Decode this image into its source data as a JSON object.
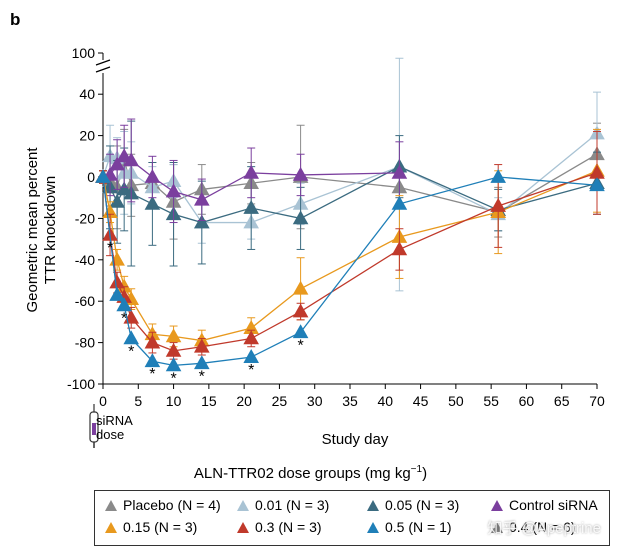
{
  "panel_label": "b",
  "annotation": {
    "dose_line1": "siRNA",
    "dose_line2": "dose"
  },
  "legend_title": "ALN-TTR02 dose groups (mg kg",
  "legend_title_sup": "−1",
  "legend_title_end": ")",
  "watermark": "知乎 @Apeptrine",
  "chart_data": {
    "type": "line",
    "ylabel": "Geometric mean percent TTR knockdown",
    "ylabel_line1": "Geometric mean percent",
    "ylabel_line2": "TTR knockdown",
    "xlabel": "Study day",
    "ylim": [
      -100,
      100
    ],
    "xlim": [
      0,
      70
    ],
    "y_ticks": [
      -100,
      -80,
      -60,
      -40,
      -20,
      0,
      20,
      40,
      100
    ],
    "x_ticks": [
      0,
      5,
      10,
      15,
      20,
      25,
      30,
      35,
      40,
      45,
      50,
      55,
      60,
      65,
      70
    ],
    "axis_break_y": 60,
    "significance_marker": "*",
    "series": [
      {
        "name": "Placebo (N = 4)",
        "color": "#8a8a8a",
        "points": [
          [
            0,
            0
          ],
          [
            1,
            -2
          ],
          [
            2,
            -5
          ],
          [
            3,
            8
          ],
          [
            4,
            -4
          ],
          [
            7,
            -3
          ],
          [
            10,
            -12
          ],
          [
            14,
            -6
          ],
          [
            21,
            -3
          ],
          [
            28,
            0
          ],
          [
            42,
            -5
          ],
          [
            56,
            -17
          ],
          [
            70,
            11
          ]
        ],
        "err": [
          3,
          12,
          20,
          15,
          15,
          10,
          18,
          12,
          10,
          25,
          10,
          12,
          15
        ]
      },
      {
        "name": "0.01 (N = 3)",
        "color": "#a9c3d4",
        "points": [
          [
            0,
            0
          ],
          [
            1,
            10
          ],
          [
            2,
            9
          ],
          [
            3,
            2
          ],
          [
            4,
            2
          ],
          [
            7,
            -5
          ],
          [
            10,
            -2
          ],
          [
            14,
            -22
          ],
          [
            21,
            -22
          ],
          [
            28,
            -13
          ],
          [
            42,
            5
          ],
          [
            56,
            -18
          ],
          [
            70,
            21
          ]
        ],
        "err": [
          3,
          15,
          10,
          20,
          15,
          10,
          8,
          10,
          8,
          10,
          60,
          8,
          20
        ]
      },
      {
        "name": "0.05 (N = 3)",
        "color": "#3b6b80",
        "points": [
          [
            0,
            0
          ],
          [
            1,
            -5
          ],
          [
            2,
            -12
          ],
          [
            3,
            -6
          ],
          [
            4,
            -8
          ],
          [
            7,
            -13
          ],
          [
            10,
            -18
          ],
          [
            14,
            -22
          ],
          [
            21,
            -15
          ],
          [
            28,
            -20
          ],
          [
            42,
            5
          ],
          [
            56,
            -16
          ],
          [
            70,
            -3
          ]
        ],
        "err": [
          3,
          20,
          20,
          20,
          35,
          20,
          25,
          20,
          20,
          15,
          15,
          10,
          15
        ]
      },
      {
        "name": "Control siRNA",
        "color": "#7b3f9e",
        "points": [
          [
            0,
            0
          ],
          [
            1,
            1
          ],
          [
            2,
            6
          ],
          [
            3,
            10
          ],
          [
            4,
            8
          ],
          [
            7,
            0
          ],
          [
            10,
            -7
          ],
          [
            14,
            -11
          ],
          [
            21,
            2
          ],
          [
            28,
            1
          ],
          [
            42,
            2
          ]
        ],
        "err": [
          3,
          10,
          12,
          15,
          20,
          10,
          15,
          10,
          12,
          10,
          15
        ]
      },
      {
        "name": "0.15 (N = 3)",
        "color": "#e8991e",
        "points": [
          [
            0,
            0
          ],
          [
            1,
            -17
          ],
          [
            2,
            -40
          ],
          [
            3,
            -53
          ],
          [
            4,
            -59
          ],
          [
            7,
            -76
          ],
          [
            10,
            -77
          ],
          [
            14,
            -79
          ],
          [
            21,
            -73
          ],
          [
            28,
            -54
          ],
          [
            42,
            -29
          ],
          [
            56,
            -17
          ],
          [
            70,
            3
          ]
        ],
        "err": [
          3,
          5,
          5,
          5,
          5,
          5,
          5,
          5,
          5,
          15,
          20,
          20,
          20
        ]
      },
      {
        "name": "0.3 (N = 3)",
        "color": "#c0392b",
        "points": [
          [
            0,
            0
          ],
          [
            1,
            -28
          ],
          [
            2,
            -51
          ],
          [
            3,
            -58
          ],
          [
            4,
            -68
          ],
          [
            7,
            -80
          ],
          [
            10,
            -84
          ],
          [
            14,
            -82
          ],
          [
            21,
            -78
          ],
          [
            28,
            -65
          ],
          [
            42,
            -35
          ],
          [
            56,
            -14
          ],
          [
            70,
            2
          ]
        ],
        "err": [
          3,
          10,
          5,
          5,
          5,
          5,
          4,
          4,
          4,
          4,
          10,
          20,
          20
        ]
      },
      {
        "name": "0.5 (N = 1)",
        "color": "#1f7fb8",
        "points": [
          [
            0,
            0
          ],
          [
            2,
            -57
          ],
          [
            3,
            -62
          ],
          [
            4,
            -78
          ],
          [
            7,
            -89
          ],
          [
            10,
            -91
          ],
          [
            14,
            -90
          ],
          [
            21,
            -87
          ],
          [
            28,
            -75
          ],
          [
            42,
            -13
          ],
          [
            56,
            0
          ],
          [
            70,
            -4
          ]
        ],
        "err": [
          0,
          0,
          0,
          0,
          0,
          0,
          0,
          0,
          0,
          0,
          0,
          0
        ]
      },
      {
        "name": "0.4 (N = 6)",
        "color": "#6f6f6f",
        "points": [],
        "err": []
      }
    ],
    "significance_days": [
      1,
      3,
      4,
      5,
      7,
      10,
      14,
      21,
      28
    ]
  },
  "legend": [
    {
      "label": "Placebo (N = 4)",
      "color": "#8a8a8a"
    },
    {
      "label": "0.01 (N = 3)",
      "color": "#a9c3d4"
    },
    {
      "label": "0.05 (N = 3)",
      "color": "#3b6b80"
    },
    {
      "label": "Control siRNA",
      "color": "#7b3f9e"
    },
    {
      "label": "0.15 (N = 3)",
      "color": "#e8991e"
    },
    {
      "label": "0.3 (N = 3)",
      "color": "#c0392b"
    },
    {
      "label": "0.5 (N = 1)",
      "color": "#1f7fb8"
    },
    {
      "label": "0.4 (N = 6)",
      "color": "#6f6f6f"
    }
  ]
}
